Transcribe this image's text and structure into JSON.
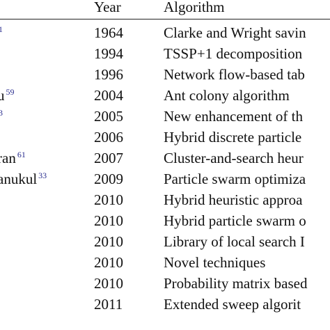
{
  "table": {
    "headers": {
      "author": "",
      "year": "Year",
      "algorithm": "Algorithm"
    },
    "rows": [
      {
        "author": "",
        "citation": "1",
        "year": "1964",
        "algorithm": "Clarke and Wright savin"
      },
      {
        "author": "",
        "citation": "",
        "year": "1994",
        "algorithm": "TSSP+1 decomposition"
      },
      {
        "author": "",
        "citation": "",
        "year": "1996",
        "algorithm": "Network flow-based tab"
      },
      {
        "author": "u",
        "citation": "59",
        "year": "2004",
        "algorithm": "Ant colony algorithm"
      },
      {
        "author": "",
        "citation": "3",
        "year": "2005",
        "algorithm": "New enhancement of th"
      },
      {
        "author": "",
        "citation": "",
        "year": "2006",
        "algorithm": "Hybrid discrete particle"
      },
      {
        "author": "ran",
        "citation": "61",
        "year": "2007",
        "algorithm": "Cluster-and-search heur"
      },
      {
        "author": "anukul",
        "citation": "33",
        "year": "2009",
        "algorithm": "Particle swarm optimiza"
      },
      {
        "author": "",
        "citation": "",
        "year": "2010",
        "algorithm": "Hybrid heuristic approa"
      },
      {
        "author": "",
        "citation": "",
        "year": "2010",
        "algorithm": "Hybrid particle swarm o"
      },
      {
        "author": "",
        "citation": "",
        "year": "2010",
        "algorithm": "Library of local search I"
      },
      {
        "author": "",
        "citation": "",
        "year": "2010",
        "algorithm": "Novel techniques"
      },
      {
        "author": "",
        "citation": "",
        "year": "2010",
        "algorithm": "Probability matrix based"
      },
      {
        "author": "",
        "citation": "",
        "year": "2011",
        "algorithm": "Extended sweep algorit"
      }
    ]
  },
  "colors": {
    "citation": "#2b2f8f",
    "text": "#111111",
    "rule": "#222222"
  }
}
